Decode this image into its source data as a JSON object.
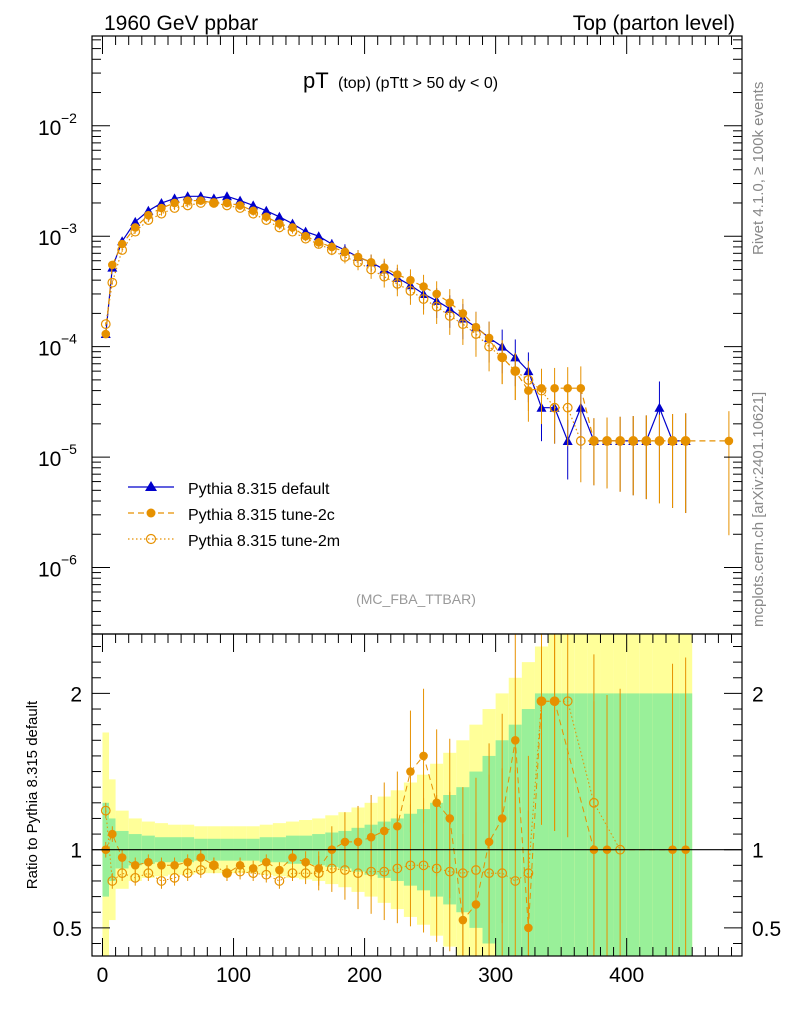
{
  "header": {
    "left": "1960 GeV ppbar",
    "right": "Top (parton level)"
  },
  "side_labels": {
    "rivet": "Rivet 4.1.0, ≥ 100k events",
    "mcplots": "mcplots.cern.ch [arXiv:2401.10621]"
  },
  "chart_data": [
    {
      "type": "line",
      "panel": "main",
      "title": "pT (top) (pTtt > 50 dy < 0)",
      "title_main": "pT",
      "title_sub": "(top)  (pTtt > 50 dy < 0)",
      "analysis_tag": "(MC_FBA_TTBAR)",
      "yscale": "log",
      "xlim": [
        -8,
        488
      ],
      "ylim": [
        2.5e-07,
        0.065
      ],
      "y_ticks": [
        {
          "value": 1e-06,
          "base": "10",
          "exp": "−6"
        },
        {
          "value": 1e-05,
          "base": "10",
          "exp": "−5"
        },
        {
          "value": 0.0001,
          "base": "10",
          "exp": "−4"
        },
        {
          "value": 0.001,
          "base": "10",
          "exp": "−3"
        },
        {
          "value": 0.01,
          "base": "10",
          "exp": "−2"
        }
      ],
      "legend": [
        {
          "label": "Pythia 8.315 default",
          "color": "#0000cc",
          "marker": "triangle",
          "dash": "solid"
        },
        {
          "label": "Pythia 8.315 tune-2c",
          "color": "#e69100",
          "marker": "circle",
          "dash": "dashed"
        },
        {
          "label": "Pythia 8.315 tune-2m",
          "color": "#e69100",
          "marker": "open-circle",
          "dash": "dotted"
        }
      ],
      "series": [
        {
          "name": "Pythia 8.315 default",
          "x": [
            2.5,
            7.5,
            15,
            25,
            35,
            45,
            55,
            65,
            75,
            85,
            95,
            105,
            115,
            125,
            135,
            145,
            155,
            165,
            175,
            185,
            195,
            205,
            215,
            225,
            235,
            245,
            255,
            265,
            275,
            285,
            295,
            305,
            315,
            325,
            335,
            345,
            355,
            365,
            375,
            385,
            395,
            405,
            415,
            425,
            435,
            445
          ],
          "y": [
            0.00013,
            0.00052,
            0.0009,
            0.00135,
            0.0017,
            0.002,
            0.0022,
            0.0023,
            0.0023,
            0.0022,
            0.0023,
            0.0021,
            0.0019,
            0.0017,
            0.0015,
            0.0013,
            0.0011,
            0.001,
            0.00085,
            0.00075,
            0.00065,
            0.00058,
            0.0005,
            0.00042,
            0.00036,
            0.0003,
            0.00026,
            0.00022,
            0.00018,
            0.00015,
            0.00012,
            0.0001,
            8e-05,
            6e-05,
            2.8e-05,
            2.8e-05,
            1.4e-05,
            2.8e-05,
            1.4e-05,
            1.4e-05,
            1.4e-05,
            1.4e-05,
            1.4e-05,
            2.8e-05,
            1.4e-05,
            1.4e-05
          ]
        },
        {
          "name": "Pythia 8.315 tune-2c",
          "x": [
            2.5,
            7.5,
            15,
            25,
            35,
            45,
            55,
            65,
            75,
            85,
            95,
            105,
            115,
            125,
            135,
            145,
            155,
            165,
            175,
            185,
            195,
            205,
            215,
            225,
            235,
            245,
            255,
            265,
            275,
            285,
            295,
            305,
            315,
            325,
            335,
            345,
            355,
            365,
            375,
            385,
            395,
            405,
            415,
            425,
            435,
            445,
            478
          ],
          "y": [
            0.00013,
            0.00055,
            0.00085,
            0.0012,
            0.00155,
            0.0018,
            0.002,
            0.0021,
            0.0021,
            0.002,
            0.002,
            0.0019,
            0.0017,
            0.0015,
            0.0013,
            0.0012,
            0.001,
            0.00088,
            0.0008,
            0.00072,
            0.00065,
            0.00058,
            0.00052,
            0.00045,
            0.0004,
            0.00035,
            0.0003,
            0.00025,
            0.0002,
            0.00015,
            0.00012,
            8e-05,
            6e-05,
            4e-05,
            4.2e-05,
            4.2e-05,
            4.2e-05,
            4.2e-05,
            1.4e-05,
            1.4e-05,
            1.4e-05,
            1.4e-05,
            1.4e-05,
            1.4e-05,
            1.4e-05,
            1.4e-05,
            1.4e-05
          ]
        },
        {
          "name": "Pythia 8.315 tune-2m",
          "x": [
            2.5,
            7.5,
            15,
            25,
            35,
            45,
            55,
            65,
            75,
            85,
            95,
            105,
            115,
            125,
            135,
            145,
            155,
            165,
            175,
            185,
            195,
            205,
            215,
            225,
            235,
            245,
            255,
            265,
            275,
            285,
            295,
            305,
            315,
            325,
            335,
            345,
            355,
            365,
            375,
            385,
            395,
            405,
            415,
            425,
            435,
            445
          ],
          "y": [
            0.00016,
            0.00038,
            0.00075,
            0.0011,
            0.0014,
            0.0016,
            0.0018,
            0.0019,
            0.002,
            0.002,
            0.0019,
            0.0018,
            0.0016,
            0.0014,
            0.0012,
            0.0011,
            0.00095,
            0.00085,
            0.00075,
            0.00065,
            0.00058,
            0.0005,
            0.00043,
            0.00037,
            0.00032,
            0.00027,
            0.00023,
            0.00019,
            0.00016,
            0.00013,
            0.0001,
            8e-05,
            6e-05,
            5e-05,
            4e-05,
            2.8e-05,
            2.8e-05,
            1.4e-05,
            1.4e-05,
            1.4e-05,
            1.4e-05,
            1.4e-05,
            1.4e-05,
            1.4e-05,
            1.4e-05,
            1.4e-05
          ]
        }
      ]
    },
    {
      "type": "line",
      "panel": "ratio",
      "ylabel": "Ratio to Pythia 8.315 default",
      "xlim": [
        -8,
        488
      ],
      "ylim": [
        0.32,
        2.38
      ],
      "y_ticks": [
        0.5,
        1,
        2
      ],
      "x_ticks": [
        0,
        100,
        200,
        300,
        400
      ],
      "reference_line": 1,
      "band": {
        "name": "Pythia 8.315 default uncertainty",
        "x_edges": [
          0,
          5,
          10,
          20,
          30,
          40,
          50,
          60,
          70,
          80,
          90,
          100,
          110,
          120,
          130,
          140,
          150,
          160,
          170,
          180,
          190,
          200,
          210,
          220,
          230,
          240,
          250,
          260,
          270,
          280,
          290,
          300,
          310,
          320,
          330,
          340,
          350,
          360,
          370,
          380,
          390,
          400,
          410,
          420,
          430,
          440,
          450
        ],
        "stat": [
          0.3,
          0.2,
          0.12,
          0.1,
          0.09,
          0.08,
          0.08,
          0.08,
          0.07,
          0.07,
          0.07,
          0.07,
          0.07,
          0.08,
          0.08,
          0.09,
          0.09,
          0.1,
          0.11,
          0.12,
          0.14,
          0.16,
          0.18,
          0.2,
          0.23,
          0.26,
          0.3,
          0.35,
          0.4,
          0.5,
          0.6,
          0.7,
          0.8,
          0.9,
          1.0,
          1.0,
          1.0,
          1.0,
          1.0,
          1.0,
          1.0,
          1.0,
          1.0,
          1.0,
          1.0,
          1.0
        ],
        "total": [
          0.75,
          0.45,
          0.25,
          0.2,
          0.18,
          0.17,
          0.16,
          0.16,
          0.15,
          0.15,
          0.15,
          0.15,
          0.15,
          0.16,
          0.17,
          0.18,
          0.19,
          0.2,
          0.22,
          0.24,
          0.27,
          0.3,
          0.34,
          0.38,
          0.43,
          0.48,
          0.55,
          0.62,
          0.7,
          0.8,
          0.9,
          1.0,
          1.1,
          1.2,
          1.3,
          1.4,
          1.4,
          1.4,
          1.4,
          1.4,
          1.4,
          1.4,
          1.4,
          1.4,
          1.4,
          1.4
        ]
      },
      "series": [
        {
          "name": "Pythia 8.315 tune-2c",
          "x": [
            2.5,
            7.5,
            15,
            25,
            35,
            45,
            55,
            65,
            75,
            85,
            95,
            105,
            115,
            125,
            135,
            145,
            155,
            165,
            175,
            185,
            195,
            205,
            215,
            225,
            235,
            245,
            255,
            265,
            275,
            285,
            295,
            305,
            315,
            325,
            335,
            345,
            375,
            385,
            435,
            445
          ],
          "y": [
            1.0,
            1.1,
            0.95,
            0.9,
            0.92,
            0.9,
            0.9,
            0.92,
            0.95,
            0.9,
            0.85,
            0.9,
            0.88,
            0.92,
            0.87,
            0.95,
            0.92,
            0.88,
            1.0,
            1.05,
            1.05,
            1.08,
            1.12,
            1.15,
            1.5,
            1.6,
            1.3,
            1.2,
            0.55,
            0.65,
            1.05,
            1.2,
            1.7,
            0.5,
            1.95,
            1.95,
            1.0,
            1.0,
            1.0,
            1.0
          ]
        },
        {
          "name": "Pythia 8.315 tune-2m",
          "x": [
            2.5,
            7.5,
            15,
            25,
            35,
            45,
            55,
            65,
            75,
            85,
            95,
            105,
            115,
            125,
            135,
            145,
            155,
            165,
            175,
            185,
            195,
            205,
            215,
            225,
            235,
            245,
            255,
            265,
            275,
            285,
            295,
            305,
            315,
            325,
            335,
            345,
            355,
            375,
            395
          ],
          "y": [
            1.25,
            0.8,
            0.85,
            0.82,
            0.85,
            0.8,
            0.82,
            0.85,
            0.87,
            0.9,
            0.85,
            0.86,
            0.85,
            0.84,
            0.8,
            0.85,
            0.85,
            0.85,
            0.88,
            0.87,
            0.85,
            0.86,
            0.86,
            0.88,
            0.9,
            0.9,
            0.88,
            0.86,
            0.85,
            0.87,
            0.85,
            0.85,
            0.8,
            0.85,
            1.95,
            1.95,
            1.95,
            1.3,
            1.0
          ]
        }
      ]
    }
  ]
}
